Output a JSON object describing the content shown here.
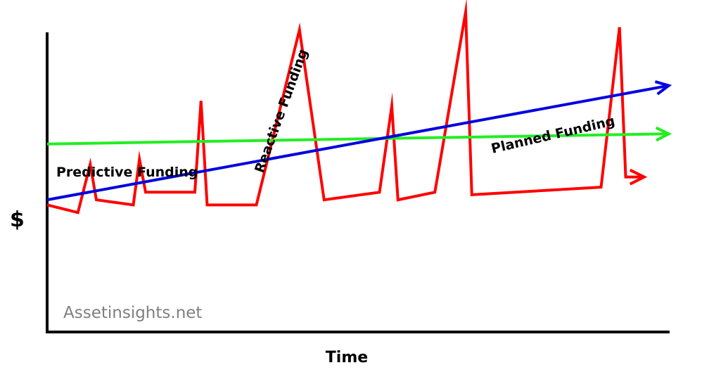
{
  "chart_data": {
    "type": "line",
    "xlabel": "Time",
    "ylabel": "$",
    "xlim": [
      0,
      100
    ],
    "ylim": [
      0,
      100
    ],
    "grid": false,
    "watermark": "Assetinsights.net",
    "series": [
      {
        "name": "Reactive Funding",
        "color": "#ff0000",
        "points": [
          [
            0,
            24
          ],
          [
            5,
            21
          ],
          [
            7,
            40
          ],
          [
            8,
            26
          ],
          [
            14,
            24
          ],
          [
            15,
            42
          ],
          [
            16,
            29
          ],
          [
            24,
            29
          ],
          [
            25,
            65
          ],
          [
            26,
            24
          ],
          [
            34,
            24
          ],
          [
            41,
            93
          ],
          [
            45,
            26
          ],
          [
            54,
            29
          ],
          [
            56,
            63
          ],
          [
            57,
            26
          ],
          [
            63,
            29
          ],
          [
            68,
            100
          ],
          [
            69,
            28
          ],
          [
            90,
            31
          ],
          [
            93,
            94
          ],
          [
            94,
            35
          ],
          [
            97,
            35
          ]
        ]
      },
      {
        "name": "Predictive Funding",
        "color": "#22ee22",
        "points": [
          [
            0,
            48
          ],
          [
            101,
            52
          ]
        ]
      },
      {
        "name": "Planned Funding",
        "color": "#0000dd",
        "points": [
          [
            0,
            26
          ],
          [
            101,
            71
          ]
        ]
      }
    ]
  }
}
